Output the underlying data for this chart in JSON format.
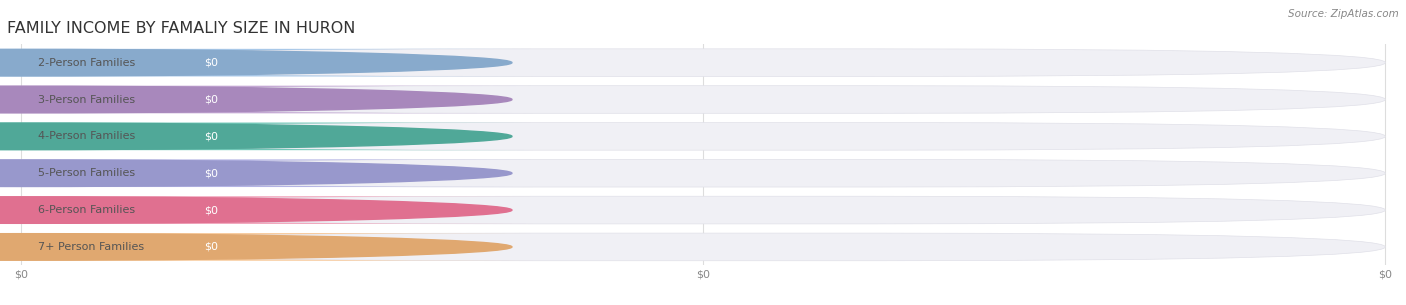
{
  "title": "FAMILY INCOME BY FAMALIY SIZE IN HURON",
  "source": "Source: ZipAtlas.com",
  "categories": [
    "2-Person Families",
    "3-Person Families",
    "4-Person Families",
    "5-Person Families",
    "6-Person Families",
    "7+ Person Families"
  ],
  "values": [
    0,
    0,
    0,
    0,
    0,
    0
  ],
  "bar_colors": [
    "#a8c8e8",
    "#c4a8d4",
    "#72c8b8",
    "#b4b4e4",
    "#f0a0b8",
    "#f8c898"
  ],
  "dot_colors": [
    "#88aacc",
    "#a888bc",
    "#50a898",
    "#9898cc",
    "#e07090",
    "#e0a870"
  ],
  "label_color": "#555555",
  "value_label_color": "#ffffff",
  "background_color": "#ffffff",
  "bar_bg_color": "#f0f0f5",
  "grid_color": "#dddddd",
  "title_fontsize": 11.5,
  "label_fontsize": 8,
  "value_fontsize": 8,
  "source_fontsize": 7.5,
  "xtick_labels": [
    "$0",
    "$0",
    "$0"
  ],
  "xtick_positions": [
    0.0,
    0.5,
    1.0
  ]
}
